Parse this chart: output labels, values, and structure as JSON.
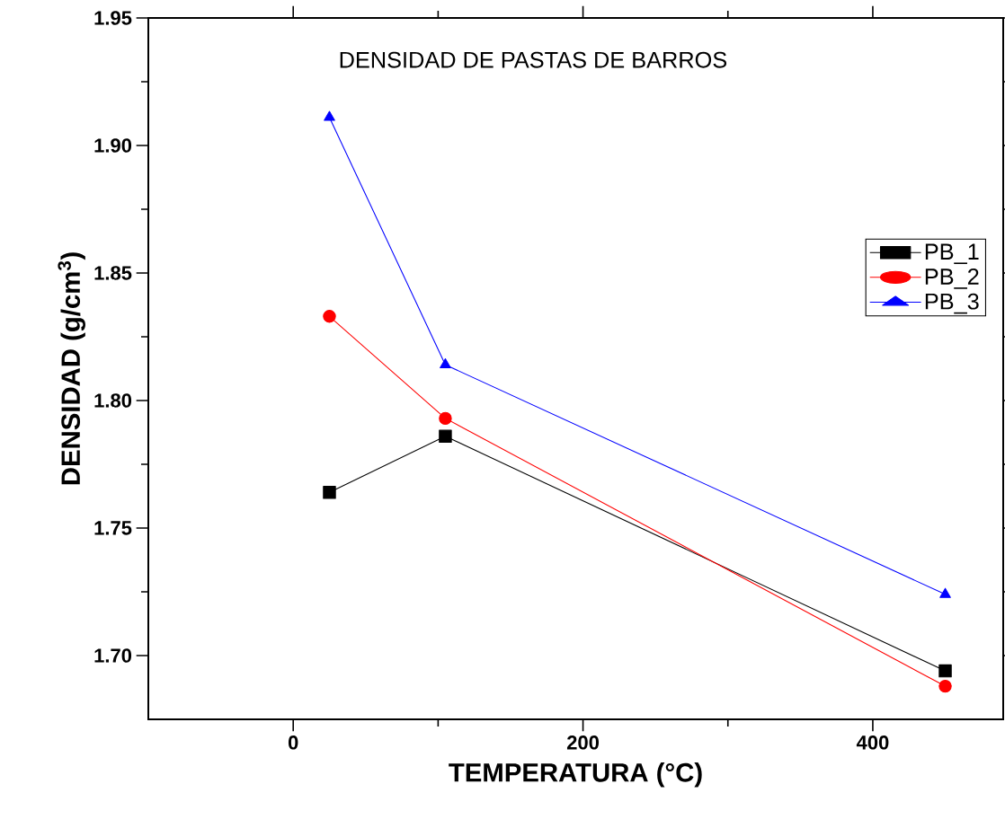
{
  "chart_data": {
    "type": "line",
    "title": "DENSIDAD DE PASTAS DE BARROS",
    "xlabel": "TEMPERATURA (°C)",
    "ylabel": "DENSIDAD (g/cm$^{3}$)",
    "x": [
      25,
      105,
      450
    ],
    "series": [
      {
        "name": "PB_1",
        "color": "#000000",
        "marker": "square",
        "values": [
          1.764,
          1.786,
          1.694
        ]
      },
      {
        "name": "PB_2",
        "color": "#ff0000",
        "marker": "circle",
        "values": [
          1.833,
          1.793,
          1.688
        ]
      },
      {
        "name": "PB_3",
        "color": "#0000ff",
        "marker": "triangle",
        "values": [
          1.911,
          1.814,
          1.724
        ]
      }
    ],
    "xlim": [
      -100,
      490
    ],
    "ylim": [
      1.675,
      1.95
    ],
    "xticks": [
      0,
      200,
      400
    ],
    "yticks": [
      {
        "value": 1.7,
        "label": "1.70"
      },
      1.75,
      {
        "value": 1.8,
        "label": "1.80"
      },
      1.85,
      {
        "value": 1.9,
        "label": "1.90"
      },
      1.95
    ],
    "legend": "right",
    "grid": false,
    "line_style": "solid"
  }
}
